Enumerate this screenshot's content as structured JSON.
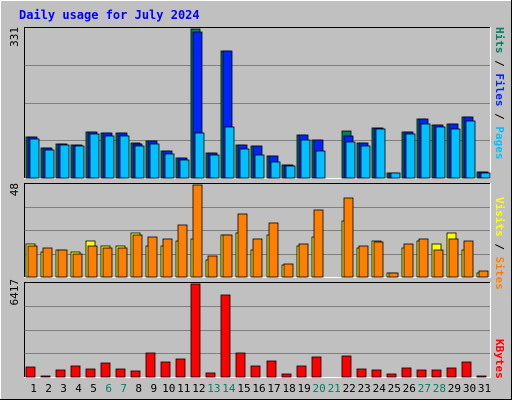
{
  "chart_data": [
    {
      "type": "bar",
      "title": "Daily usage for July 2024",
      "categories": [
        "1",
        "2",
        "3",
        "4",
        "5",
        "6",
        "7",
        "8",
        "9",
        "10",
        "11",
        "12",
        "13",
        "14",
        "15",
        "16",
        "17",
        "18",
        "19",
        "20",
        "21",
        "22",
        "23",
        "24",
        "25",
        "26",
        "27",
        "28",
        "29",
        "30",
        "31"
      ],
      "weekend_days": [
        "6",
        "7",
        "13",
        "14",
        "20",
        "21",
        "27",
        "28"
      ],
      "panels": [
        {
          "id": "top",
          "ymax_label": "331",
          "ylim": [
            0,
            331
          ],
          "right_labels": [
            "Pages",
            "Files",
            "Hits"
          ],
          "series": [
            {
              "name": "Hits",
              "color": "#00805c",
              "values": [
                91,
                67,
                75,
                74,
                102,
                101,
                101,
                77,
                82,
                59,
                45,
                331,
                55,
                282,
                74,
                72,
                48,
                29,
                96,
                85,
                0,
                104,
                78,
                112,
                12,
                102,
                130,
                117,
                119,
                135,
                13
              ]
            },
            {
              "name": "Files",
              "color": "#0024ff",
              "values": [
                91,
                66,
                75,
                74,
                102,
                101,
                101,
                76,
                82,
                59,
                45,
                325,
                55,
                282,
                74,
                72,
                48,
                29,
                96,
                85,
                0,
                93,
                77,
                112,
                12,
                102,
                130,
                117,
                119,
                135,
                13
              ]
            },
            {
              "name": "Pages",
              "color": "#00c0ff",
              "values": [
                87,
                63,
                73,
                72,
                97,
                93,
                93,
                71,
                76,
                53,
                40,
                100,
                50,
                114,
                65,
                52,
                36,
                26,
                85,
                60,
                0,
                81,
                72,
                108,
                11,
                98,
                121,
                113,
                109,
                127,
                12
              ]
            }
          ]
        },
        {
          "id": "middle",
          "ymax_label": "48",
          "ylim": [
            0,
            48
          ],
          "right_labels": [
            "Sites",
            "Visits"
          ],
          "series": [
            {
              "name": "Visits",
              "color": "#ffff00",
              "values": [
                17,
                13,
                14,
                13,
                19,
                16,
                16,
                23,
                16,
                16,
                19,
                20,
                9,
                22,
                23,
                14,
                22,
                6,
                16,
                21,
                0,
                29,
                15,
                19,
                2,
                15,
                19,
                17,
                23,
                14,
                2
              ]
            },
            {
              "name": "Sites",
              "color": "#ff8000",
              "values": [
                16,
                15,
                14,
                12,
                16,
                15,
                15,
                22,
                21,
                20,
                27,
                48,
                11,
                22,
                33,
                20,
                28,
                7,
                17,
                35,
                0,
                41,
                16,
                18,
                2,
                17,
                20,
                14,
                20,
                19,
                3
              ]
            }
          ]
        },
        {
          "id": "bottom",
          "ymax_label": "6417",
          "ylim": [
            0,
            6417
          ],
          "right_labels": [
            "KBytes"
          ],
          "series": [
            {
              "name": "KBytes",
              "color": "#ff0000",
              "values": [
                680,
                100,
                460,
                740,
                560,
                960,
                560,
                380,
                1690,
                1020,
                1260,
                6417,
                280,
                5650,
                1690,
                740,
                1100,
                180,
                740,
                1380,
                0,
                1470,
                560,
                460,
                180,
                650,
                460,
                460,
                650,
                1010,
                100
              ]
            }
          ]
        }
      ]
    }
  ],
  "colors": {
    "background": "#c0c0c0",
    "plot_bg": "#c0c0c0",
    "gridline": "#808080",
    "title": "#0000ff",
    "weekday_label": "#000000",
    "weekend_label": "#00805c",
    "label_pages": "#00c0ff",
    "label_files": "#0024ff",
    "label_hits": "#00805c",
    "label_sites": "#ff8000",
    "label_visits": "#ffff00",
    "label_kbytes": "#ff0000",
    "sep": "#000000"
  }
}
